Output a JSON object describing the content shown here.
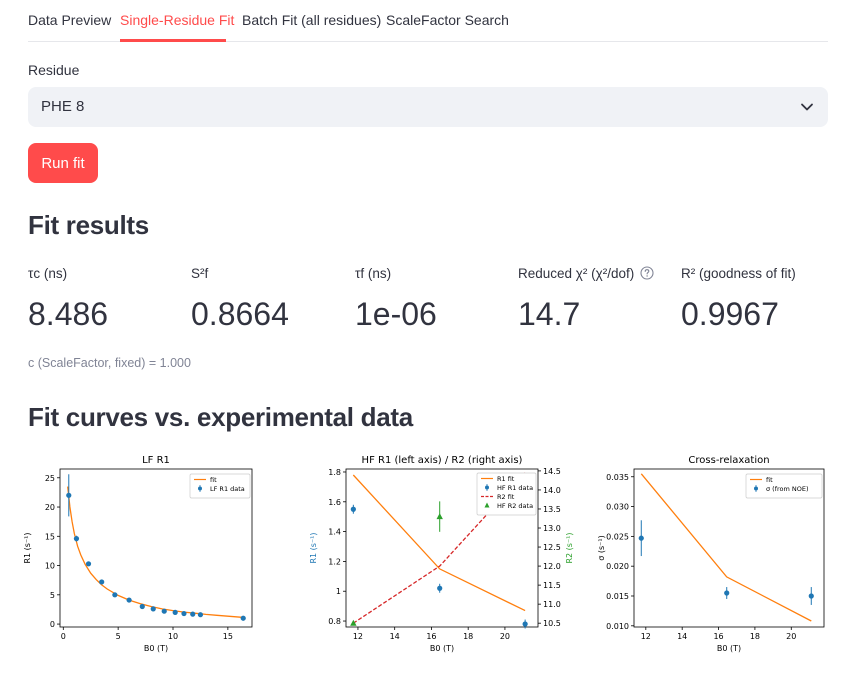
{
  "tabs": [
    {
      "label": "Data Preview",
      "active": false
    },
    {
      "label": "Single-Residue Fit",
      "active": true
    },
    {
      "label": "Batch Fit (all residues)",
      "active": false
    },
    {
      "label": "ScaleFactor Search",
      "active": false
    }
  ],
  "residue": {
    "label": "Residue",
    "value": "PHE 8",
    "icon": "chevron-down-icon"
  },
  "run_button": "Run fit",
  "fit_results": {
    "heading": "Fit results",
    "metrics": [
      {
        "label": "τc (ns)",
        "value": "8.486"
      },
      {
        "label": "S²f",
        "value": "0.8664"
      },
      {
        "label": "τf (ns)",
        "value": "1e-06"
      },
      {
        "label": "Reduced χ² (χ²/dof)",
        "value": "14.7",
        "help_icon": "question-circle-icon"
      },
      {
        "label": "R² (goodness of fit)",
        "value": "0.9967"
      }
    ],
    "caption": "c (ScaleFactor, fixed) = 1.000"
  },
  "curves_heading": "Fit curves vs. experimental data",
  "colors": {
    "accent": "#ff4b4b",
    "blue": "#1f77b4",
    "orange": "#ff7f0e",
    "red": "#d62728",
    "green": "#2ca02c"
  },
  "chart_data": [
    {
      "type": "line",
      "title": "LF R1",
      "xlabel": "B0 (T)",
      "ylabel": "R1 (s⁻¹)",
      "xlim": [
        -0.3,
        17.2
      ],
      "ylim": [
        -0.5,
        26.5
      ],
      "xticks": [
        0,
        5,
        10,
        15
      ],
      "yticks": [
        0,
        5,
        10,
        15,
        20,
        25
      ],
      "legend": [
        "fit",
        "LF R1 data"
      ],
      "legend_position": "top-right",
      "fit": {
        "x": [
          0.4,
          0.6,
          0.8,
          1.0,
          1.3,
          1.6,
          2.0,
          2.5,
          3.0,
          3.5,
          4.0,
          5.0,
          6.0,
          7.0,
          8.0,
          9.0,
          10.0,
          11.0,
          12.0,
          13.0,
          14.0,
          15.0,
          16.3
        ],
        "y": [
          23.5,
          20.0,
          17.5,
          15.5,
          13.3,
          11.8,
          10.2,
          8.7,
          7.6,
          6.7,
          6.0,
          4.9,
          4.1,
          3.5,
          3.0,
          2.6,
          2.3,
          2.05,
          1.85,
          1.65,
          1.5,
          1.35,
          1.15
        ]
      },
      "data": {
        "x": [
          0.5,
          1.2,
          2.3,
          3.5,
          4.7,
          6.0,
          7.2,
          8.2,
          9.2,
          10.2,
          11.0,
          11.8,
          12.5,
          16.4
        ],
        "y": [
          22.0,
          14.6,
          10.3,
          7.2,
          5.0,
          4.1,
          3.0,
          2.6,
          2.2,
          2.0,
          1.8,
          1.7,
          1.6,
          1.0
        ],
        "err": [
          3.6,
          0.5,
          0.3,
          0.2,
          0.2,
          0.15,
          0.12,
          0.1,
          0.1,
          0.1,
          0.1,
          0.1,
          0.1,
          0.1
        ]
      }
    },
    {
      "type": "line",
      "title": "HF R1 (left axis) / R2 (right axis)",
      "xlabel": "B0 (T)",
      "ylabel": "R1 (s⁻¹)",
      "ylabel_right": "R2 (s⁻¹)",
      "xlim": [
        11.35,
        21.8
      ],
      "ylim": [
        0.76,
        1.82
      ],
      "ylim_right": [
        10.4,
        14.55
      ],
      "xticks": [
        12,
        14,
        16,
        18,
        20
      ],
      "yticks": [
        0.8,
        1.0,
        1.2,
        1.4,
        1.6,
        1.8
      ],
      "yticks_right": [
        10.5,
        11.0,
        11.5,
        12.0,
        12.5,
        13.0,
        13.5,
        14.0,
        14.5
      ],
      "legend": [
        "R1 fit",
        "HF R1 data",
        "R2 fit",
        "HF R2 data"
      ],
      "legend_position": "top-right",
      "r1_fit": {
        "x": [
          11.75,
          16.45,
          21.1
        ],
        "y": [
          1.78,
          1.15,
          0.87
        ]
      },
      "r1_data": {
        "x": [
          11.75,
          16.45,
          21.1
        ],
        "y": [
          1.55,
          1.02,
          0.78
        ],
        "err": [
          0.03,
          0.03,
          0.03
        ]
      },
      "r2_fit": {
        "x": [
          11.75,
          16.45,
          21.1
        ],
        "y": [
          10.5,
          12.0,
          14.45
        ]
      },
      "r2_data": {
        "x": [
          11.75,
          16.45,
          21.1
        ],
        "y": [
          10.5,
          13.3,
          14.0
        ],
        "err": [
          0.02,
          0.4,
          0.15
        ]
      }
    },
    {
      "type": "line",
      "title": "Cross-relaxation",
      "xlabel": "B0 (T)",
      "ylabel": "σ (s⁻¹)",
      "xlim": [
        11.35,
        21.8
      ],
      "ylim": [
        0.0098,
        0.0363
      ],
      "xticks": [
        12,
        14,
        16,
        18,
        20
      ],
      "yticks": [
        0.01,
        0.015,
        0.02,
        0.025,
        0.03,
        0.035
      ],
      "legend": [
        "fit",
        "σ (from NOE)"
      ],
      "legend_position": "top-right",
      "fit": {
        "x": [
          11.75,
          16.45,
          21.1
        ],
        "y": [
          0.0355,
          0.0182,
          0.0108
        ]
      },
      "data": {
        "x": [
          11.75,
          16.45,
          21.1
        ],
        "y": [
          0.0247,
          0.0155,
          0.015
        ],
        "err": [
          0.003,
          0.001,
          0.0015
        ]
      }
    }
  ]
}
